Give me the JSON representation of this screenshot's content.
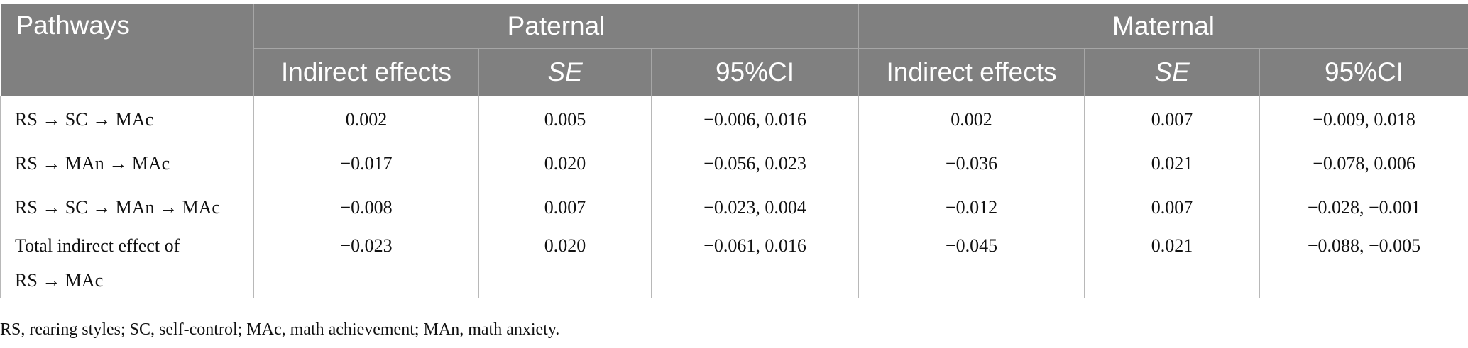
{
  "table": {
    "header": {
      "pathways": "Pathways",
      "group_paternal": "Paternal",
      "group_maternal": "Maternal",
      "columns": [
        "Indirect effects",
        "SE",
        "95%CI",
        "Indirect effects",
        "SE",
        "95%CI"
      ]
    },
    "rows": [
      {
        "pathway": "RS → SC → MAc",
        "values": [
          "0.002",
          "0.005",
          "−0.006, 0.016",
          "0.002",
          "0.007",
          "−0.009, 0.018"
        ]
      },
      {
        "pathway": "RS → MAn → MAc",
        "values": [
          "−0.017",
          "0.020",
          "−0.056, 0.023",
          "−0.036",
          "0.021",
          "−0.078, 0.006"
        ]
      },
      {
        "pathway": "RS → SC → MAn → MAc",
        "values": [
          "−0.008",
          "0.007",
          "−0.023, 0.004",
          "−0.012",
          "0.007",
          "−0.028, −0.001"
        ]
      },
      {
        "pathway_line1": "Total indirect effect of",
        "pathway_line2": "RS → MAc",
        "values": [
          "−0.023",
          "0.020",
          "−0.061, 0.016",
          "−0.045",
          "0.021",
          "−0.088, −0.005"
        ]
      }
    ]
  },
  "footnote": "RS, rearing styles; SC, self-control; MAc, math achievement; MAn, math anxiety."
}
